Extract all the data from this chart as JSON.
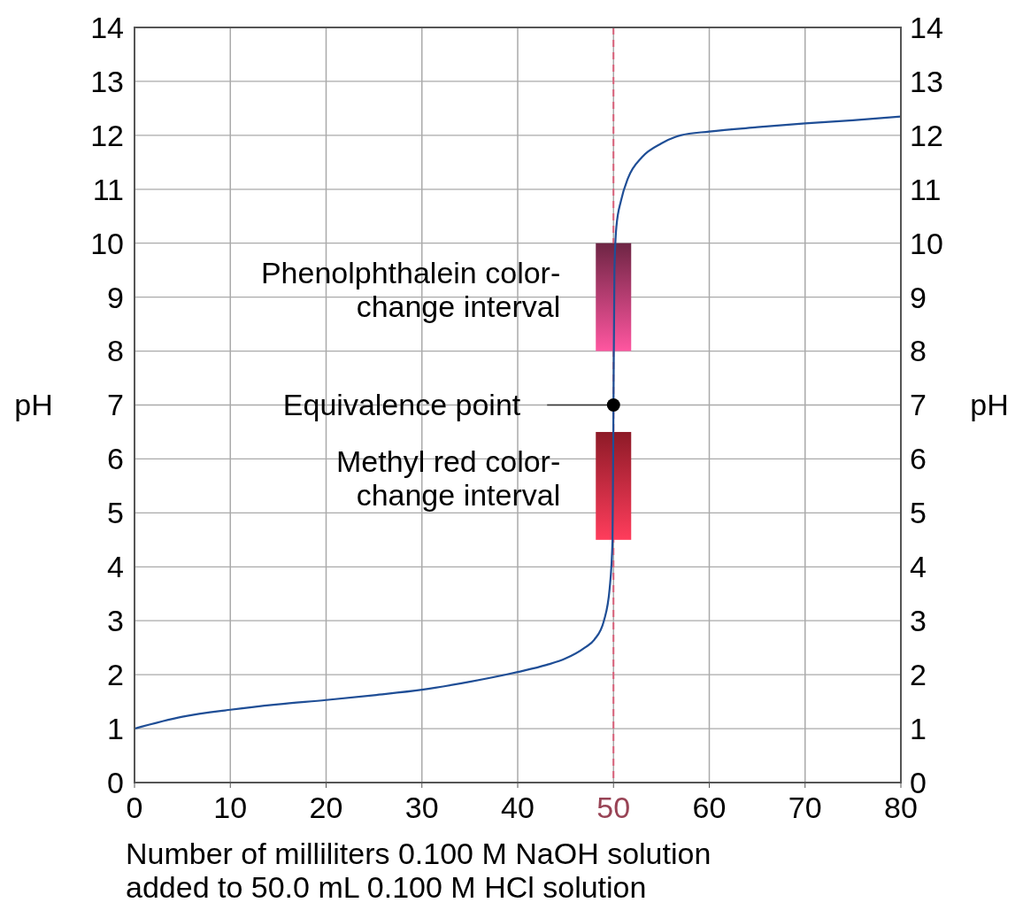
{
  "chart_data": {
    "type": "line",
    "x": [
      0,
      5,
      10,
      15,
      20,
      25,
      30,
      35,
      40,
      43,
      45,
      47,
      48,
      49,
      49.6,
      49.9,
      50,
      50.1,
      50.3,
      50.8,
      51.5,
      53,
      55,
      57,
      60,
      65,
      70,
      75,
      80
    ],
    "series": [
      {
        "color": "#1f4e96",
        "values": [
          1.0,
          1.22,
          1.35,
          1.45,
          1.53,
          1.62,
          1.72,
          1.87,
          2.05,
          2.18,
          2.3,
          2.5,
          2.65,
          3.0,
          3.6,
          4.5,
          7.0,
          9.5,
          10.3,
          10.8,
          11.2,
          11.6,
          11.85,
          12.0,
          12.07,
          12.15,
          12.22,
          12.28,
          12.35
        ]
      },
      {
        "type": "scatter",
        "color": "#000000",
        "x": [
          50
        ],
        "values": [
          7
        ],
        "marker": "circle"
      }
    ],
    "xlabel": "Number of milliliters 0.100 M NaOH solution added to 50.0 mL 0.100 M HCl solution",
    "ylabel": "pH",
    "y2label": "pH",
    "xlim": [
      0,
      80
    ],
    "xticks": [
      0,
      10,
      20,
      30,
      40,
      50,
      60,
      70,
      80
    ],
    "ylim": [
      0,
      14
    ],
    "yticks": [
      0,
      1,
      2,
      3,
      4,
      5,
      6,
      7,
      8,
      9,
      10,
      11,
      12,
      13,
      14
    ],
    "y2lim": [
      0,
      14
    ],
    "y2ticks": [
      0,
      1,
      2,
      3,
      4,
      5,
      6,
      7,
      8,
      9,
      10,
      11,
      12,
      13,
      14
    ],
    "grid": true,
    "ref_lines": [
      {
        "axis": "x",
        "value": 50,
        "color": "#d9607a",
        "line_style": "dashed"
      }
    ],
    "bands": [
      {
        "axis": "y",
        "from": 8,
        "to": 10,
        "label": "Phenolphthalein color-change interval",
        "color": "#a83868"
      },
      {
        "axis": "y",
        "from": 4.5,
        "to": 6.5,
        "label": "Methyl red color-change interval",
        "color": "#d8283c"
      }
    ],
    "annotations": [
      {
        "text": "Equivalence point",
        "x": 50,
        "y": 7
      }
    ]
  }
}
